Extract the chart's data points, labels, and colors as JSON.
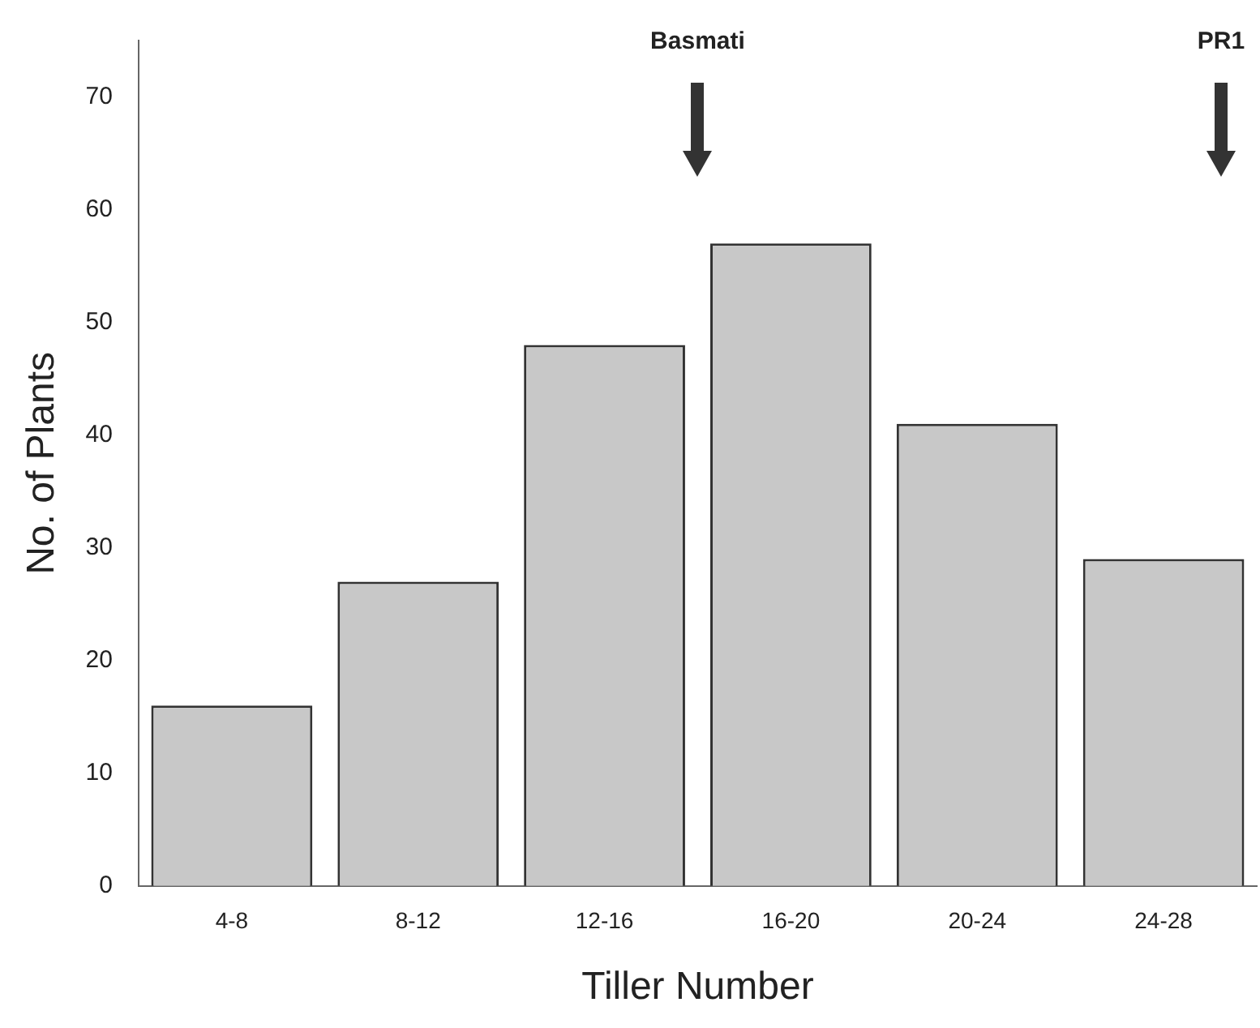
{
  "chart_data": {
    "type": "bar",
    "xlabel": "Tiller Number",
    "ylabel": "No. of Plants",
    "categories": [
      "4-8",
      "8-12",
      "12-16",
      "16-20",
      "20-24",
      "24-28"
    ],
    "values": [
      16,
      27,
      48,
      57,
      41,
      29
    ],
    "color": "#c8c8c8",
    "ylim": [
      0,
      75
    ],
    "yticks": [
      0,
      10,
      20,
      30,
      40,
      50,
      60,
      70
    ],
    "grid": false,
    "annotations": [
      "Basmati",
      "PR1"
    ]
  }
}
